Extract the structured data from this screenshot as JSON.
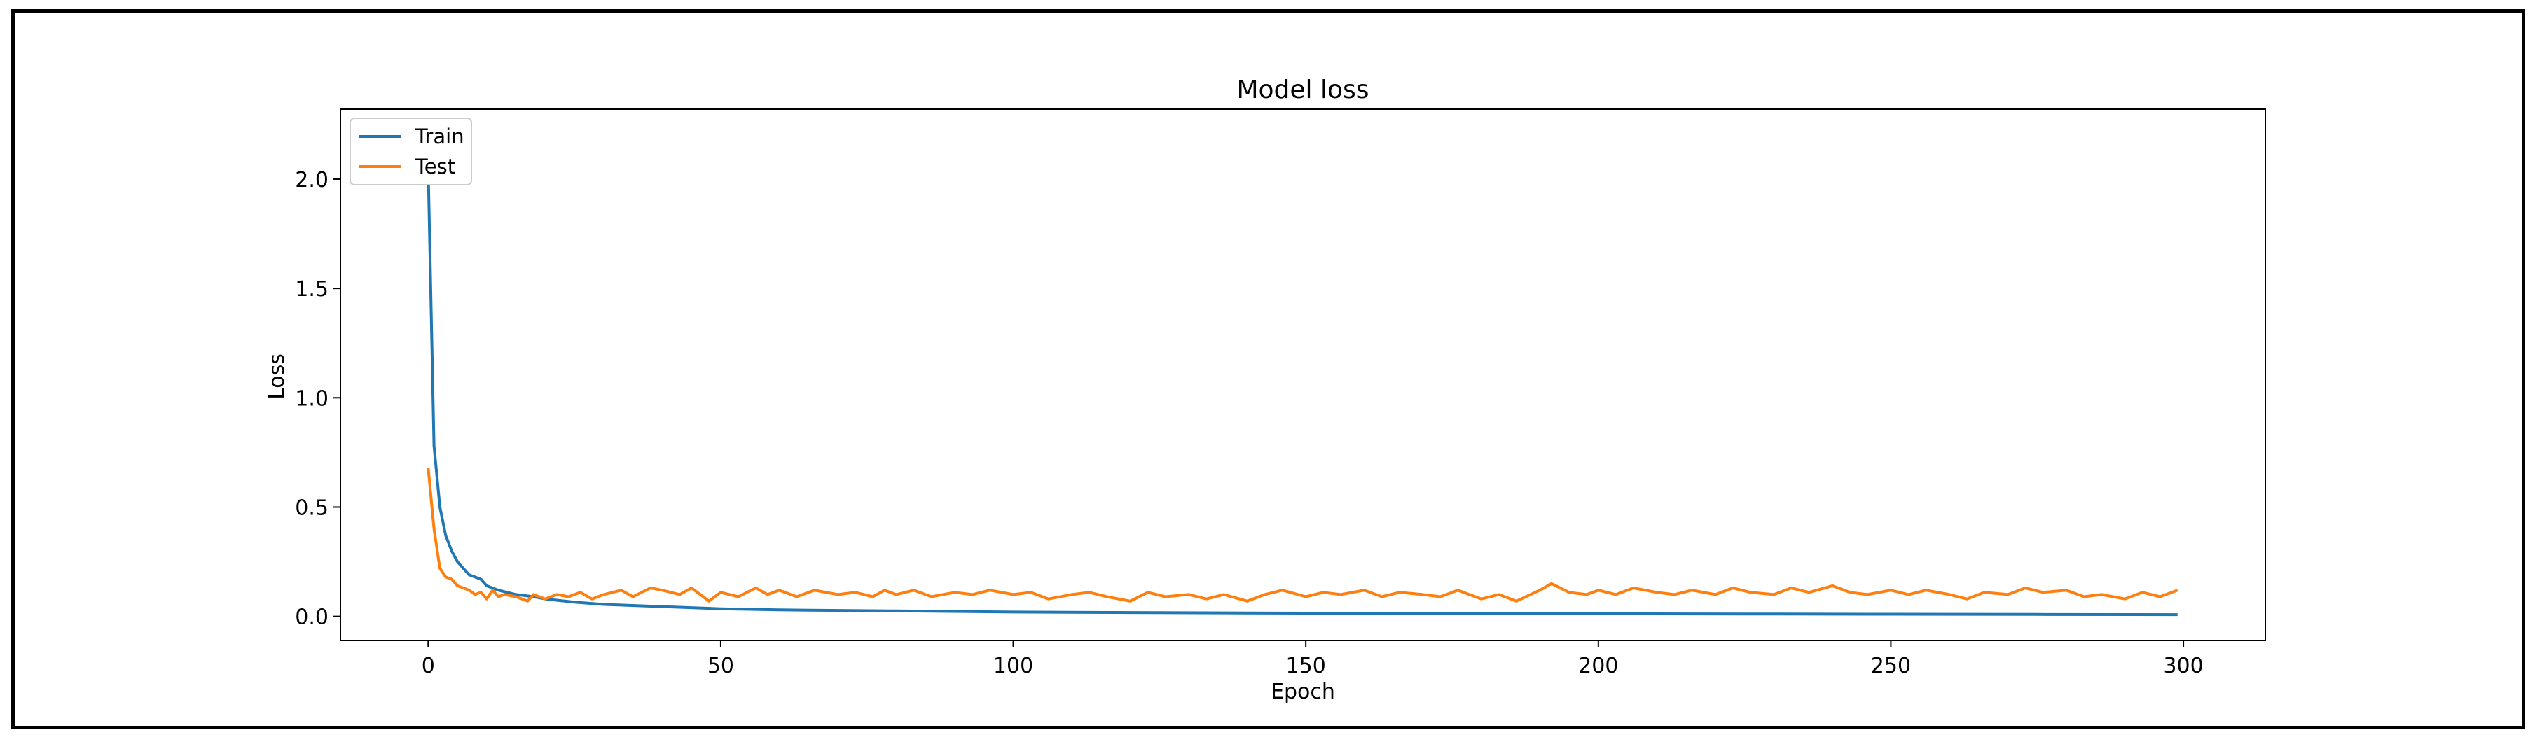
{
  "chart_data": {
    "type": "line",
    "title": "Model loss",
    "xlabel": "Epoch",
    "ylabel": "Loss",
    "xlim": [
      -15,
      314
    ],
    "ylim": [
      -0.11,
      2.32
    ],
    "xticks": [
      0,
      50,
      100,
      150,
      200,
      250,
      300
    ],
    "yticks": [
      0.0,
      0.5,
      1.0,
      1.5,
      2.0
    ],
    "legend_position": "upper-left",
    "grid": false,
    "series": [
      {
        "name": "Train",
        "color": "#1f77b4",
        "points": [
          [
            0,
            2.05
          ],
          [
            1,
            0.78
          ],
          [
            2,
            0.5
          ],
          [
            3,
            0.37
          ],
          [
            4,
            0.3
          ],
          [
            5,
            0.25
          ],
          [
            6,
            0.22
          ],
          [
            7,
            0.19
          ],
          [
            8,
            0.18
          ],
          [
            9,
            0.17
          ],
          [
            10,
            0.14
          ],
          [
            12,
            0.12
          ],
          [
            15,
            0.1
          ],
          [
            18,
            0.09
          ],
          [
            20,
            0.08
          ],
          [
            25,
            0.065
          ],
          [
            30,
            0.055
          ],
          [
            40,
            0.045
          ],
          [
            50,
            0.035
          ],
          [
            60,
            0.03
          ],
          [
            80,
            0.025
          ],
          [
            100,
            0.02
          ],
          [
            125,
            0.017
          ],
          [
            150,
            0.015
          ],
          [
            175,
            0.013
          ],
          [
            200,
            0.012
          ],
          [
            225,
            0.011
          ],
          [
            250,
            0.01
          ],
          [
            275,
            0.009
          ],
          [
            299,
            0.008
          ]
        ]
      },
      {
        "name": "Test",
        "color": "#ff7f0e",
        "points": [
          [
            0,
            0.68
          ],
          [
            1,
            0.4
          ],
          [
            2,
            0.22
          ],
          [
            3,
            0.18
          ],
          [
            4,
            0.17
          ],
          [
            5,
            0.14
          ],
          [
            6,
            0.13
          ],
          [
            7,
            0.12
          ],
          [
            8,
            0.1
          ],
          [
            9,
            0.11
          ],
          [
            10,
            0.08
          ],
          [
            11,
            0.12
          ],
          [
            12,
            0.09
          ],
          [
            13,
            0.1
          ],
          [
            15,
            0.09
          ],
          [
            17,
            0.07
          ],
          [
            18,
            0.1
          ],
          [
            20,
            0.08
          ],
          [
            22,
            0.1
          ],
          [
            24,
            0.09
          ],
          [
            26,
            0.11
          ],
          [
            28,
            0.08
          ],
          [
            30,
            0.1
          ],
          [
            33,
            0.12
          ],
          [
            35,
            0.09
          ],
          [
            38,
            0.13
          ],
          [
            40,
            0.12
          ],
          [
            43,
            0.1
          ],
          [
            45,
            0.13
          ],
          [
            48,
            0.07
          ],
          [
            50,
            0.11
          ],
          [
            53,
            0.09
          ],
          [
            56,
            0.13
          ],
          [
            58,
            0.1
          ],
          [
            60,
            0.12
          ],
          [
            63,
            0.09
          ],
          [
            66,
            0.12
          ],
          [
            70,
            0.1
          ],
          [
            73,
            0.11
          ],
          [
            76,
            0.09
          ],
          [
            78,
            0.12
          ],
          [
            80,
            0.1
          ],
          [
            83,
            0.12
          ],
          [
            86,
            0.09
          ],
          [
            90,
            0.11
          ],
          [
            93,
            0.1
          ],
          [
            96,
            0.12
          ],
          [
            100,
            0.1
          ],
          [
            103,
            0.11
          ],
          [
            106,
            0.08
          ],
          [
            110,
            0.1
          ],
          [
            113,
            0.11
          ],
          [
            116,
            0.09
          ],
          [
            120,
            0.07
          ],
          [
            123,
            0.11
          ],
          [
            126,
            0.09
          ],
          [
            130,
            0.1
          ],
          [
            133,
            0.08
          ],
          [
            136,
            0.1
          ],
          [
            140,
            0.07
          ],
          [
            143,
            0.1
          ],
          [
            146,
            0.12
          ],
          [
            150,
            0.09
          ],
          [
            153,
            0.11
          ],
          [
            156,
            0.1
          ],
          [
            160,
            0.12
          ],
          [
            163,
            0.09
          ],
          [
            166,
            0.11
          ],
          [
            170,
            0.1
          ],
          [
            173,
            0.09
          ],
          [
            176,
            0.12
          ],
          [
            180,
            0.08
          ],
          [
            183,
            0.1
          ],
          [
            186,
            0.07
          ],
          [
            190,
            0.12
          ],
          [
            192,
            0.15
          ],
          [
            195,
            0.11
          ],
          [
            198,
            0.1
          ],
          [
            200,
            0.12
          ],
          [
            203,
            0.1
          ],
          [
            206,
            0.13
          ],
          [
            210,
            0.11
          ],
          [
            213,
            0.1
          ],
          [
            216,
            0.12
          ],
          [
            220,
            0.1
          ],
          [
            223,
            0.13
          ],
          [
            226,
            0.11
          ],
          [
            230,
            0.1
          ],
          [
            233,
            0.13
          ],
          [
            236,
            0.11
          ],
          [
            240,
            0.14
          ],
          [
            243,
            0.11
          ],
          [
            246,
            0.1
          ],
          [
            250,
            0.12
          ],
          [
            253,
            0.1
          ],
          [
            256,
            0.12
          ],
          [
            260,
            0.1
          ],
          [
            263,
            0.08
          ],
          [
            266,
            0.11
          ],
          [
            270,
            0.1
          ],
          [
            273,
            0.13
          ],
          [
            276,
            0.11
          ],
          [
            280,
            0.12
          ],
          [
            283,
            0.09
          ],
          [
            286,
            0.1
          ],
          [
            290,
            0.08
          ],
          [
            293,
            0.11
          ],
          [
            296,
            0.09
          ],
          [
            299,
            0.12
          ]
        ]
      }
    ]
  }
}
